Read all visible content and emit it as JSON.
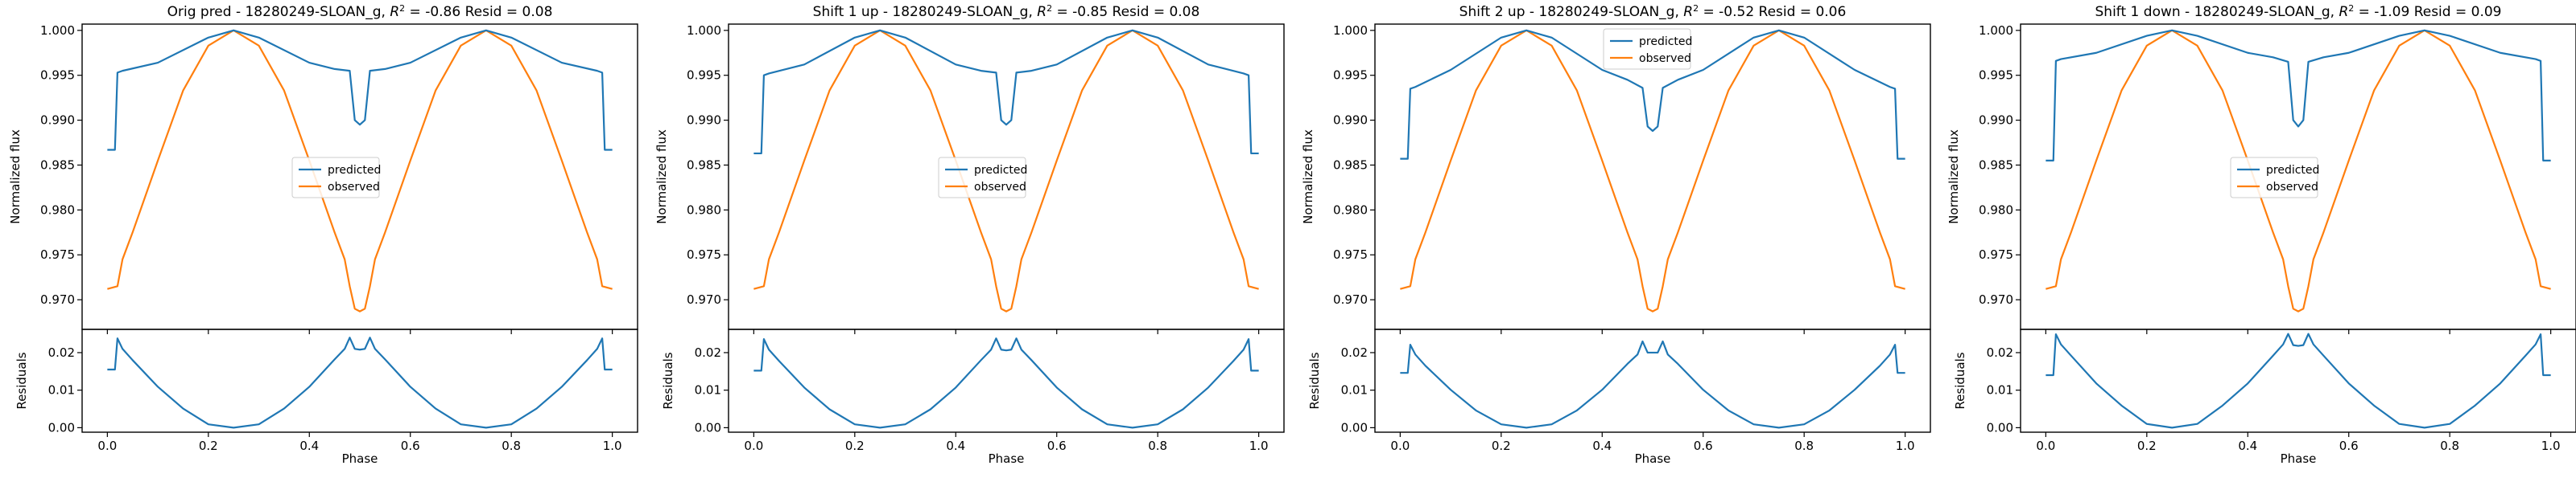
{
  "figure": {
    "panels": [
      {
        "title": "Orig pred - 18280249-SLOAN_g, ",
        "r2_text": "R",
        "r2_sup": "2",
        "r2_value": " = -0.86 Resid = 0.08"
      },
      {
        "title": "Shift 1 up - 18280249-SLOAN_g, ",
        "r2_text": "R",
        "r2_sup": "2",
        "r2_value": " = -0.85 Resid = 0.08"
      },
      {
        "title": "Shift 2 up - 18280249-SLOAN_g, ",
        "r2_text": "R",
        "r2_sup": "2",
        "r2_value": " = -0.52 Resid = 0.06"
      },
      {
        "title": "Shift 1 down - 18280249-SLOAN_g, ",
        "r2_text": "R",
        "r2_sup": "2",
        "r2_value": " = -1.09 Resid = 0.09"
      }
    ]
  },
  "chart_data": [
    {
      "type": "line",
      "title": "Orig pred - 18280249-SLOAN_g, R^2 = -0.86 Resid = 0.08",
      "xlabel": "Phase",
      "ylabel_top": "Normalized flux",
      "ylabel_bottom": "Residuals",
      "xlim": [
        -0.05,
        1.05
      ],
      "ylim_top": [
        0.9667,
        1.0007
      ],
      "ylim_bottom": [
        -0.0012,
        0.0262
      ],
      "x_ticks": [
        "0.0",
        "0.2",
        "0.4",
        "0.6",
        "0.8",
        "1.0"
      ],
      "y_ticks_top": [
        "0.970",
        "0.975",
        "0.980",
        "0.985",
        "0.990",
        "0.995",
        "1.000"
      ],
      "y_ticks_bottom": [
        "0.00",
        "0.01",
        "0.02"
      ],
      "legend": {
        "position": "center",
        "entries": [
          "predicted",
          "observed"
        ]
      },
      "series": [
        {
          "name": "predicted",
          "color": "#1f77b4",
          "x": [
            0.0,
            0.015,
            0.02,
            0.03,
            0.1,
            0.2,
            0.25,
            0.3,
            0.4,
            0.45,
            0.48,
            0.49,
            0.5,
            0.51,
            0.52,
            0.55,
            0.6,
            0.7,
            0.75,
            0.8,
            0.9,
            0.97,
            0.98,
            0.985,
            1.0
          ],
          "y": [
            0.9867,
            0.9867,
            0.9953,
            0.9955,
            0.9964,
            0.9992,
            1.0,
            0.9992,
            0.9964,
            0.9957,
            0.9955,
            0.99,
            0.9895,
            0.99,
            0.9955,
            0.9957,
            0.9964,
            0.9992,
            1.0,
            0.9992,
            0.9964,
            0.9955,
            0.9953,
            0.9867,
            0.9867
          ]
        },
        {
          "name": "observed",
          "color": "#ff7f0e",
          "x": [
            0.0,
            0.02,
            0.03,
            0.05,
            0.1,
            0.15,
            0.2,
            0.25,
            0.3,
            0.35,
            0.4,
            0.45,
            0.47,
            0.48,
            0.49,
            0.5,
            0.51,
            0.52,
            0.53,
            0.55,
            0.6,
            0.65,
            0.7,
            0.75,
            0.8,
            0.85,
            0.9,
            0.95,
            0.97,
            0.98,
            1.0
          ],
          "y": [
            0.9712,
            0.9715,
            0.9745,
            0.9775,
            0.9855,
            0.9933,
            0.9983,
            1.0,
            0.9983,
            0.9933,
            0.9855,
            0.9775,
            0.9745,
            0.9715,
            0.969,
            0.9687,
            0.969,
            0.9715,
            0.9745,
            0.9775,
            0.9855,
            0.9933,
            0.9983,
            1.0,
            0.9983,
            0.9933,
            0.9855,
            0.9775,
            0.9745,
            0.9715,
            0.9712
          ]
        },
        {
          "name": "residuals",
          "color": "#1f77b4",
          "x": [
            0.0,
            0.015,
            0.02,
            0.03,
            0.05,
            0.1,
            0.15,
            0.2,
            0.25,
            0.3,
            0.35,
            0.4,
            0.45,
            0.47,
            0.48,
            0.49,
            0.5,
            0.51,
            0.52,
            0.53,
            0.55,
            0.6,
            0.65,
            0.7,
            0.75,
            0.8,
            0.85,
            0.9,
            0.95,
            0.97,
            0.98,
            0.985,
            1.0
          ],
          "y": [
            0.0155,
            0.0155,
            0.0238,
            0.021,
            0.018,
            0.0109,
            0.0051,
            0.0009,
            0.0,
            0.0009,
            0.0051,
            0.0109,
            0.0182,
            0.021,
            0.024,
            0.021,
            0.0208,
            0.021,
            0.024,
            0.021,
            0.0182,
            0.0109,
            0.0051,
            0.0009,
            0.0,
            0.0009,
            0.0051,
            0.0109,
            0.018,
            0.021,
            0.0238,
            0.0155,
            0.0155
          ]
        }
      ]
    },
    {
      "type": "line",
      "title": "Shift 1 up - 18280249-SLOAN_g, R^2 = -0.85 Resid = 0.08",
      "xlabel": "Phase",
      "ylabel_top": "Normalized flux",
      "ylabel_bottom": "Residuals",
      "xlim": [
        -0.05,
        1.05
      ],
      "ylim_top": [
        0.9667,
        1.0007
      ],
      "ylim_bottom": [
        -0.0012,
        0.0262
      ],
      "x_ticks": [
        "0.0",
        "0.2",
        "0.4",
        "0.6",
        "0.8",
        "1.0"
      ],
      "y_ticks_top": [
        "0.970",
        "0.975",
        "0.980",
        "0.985",
        "0.990",
        "0.995",
        "1.000"
      ],
      "y_ticks_bottom": [
        "0.00",
        "0.01",
        "0.02"
      ],
      "legend": {
        "position": "center",
        "entries": [
          "predicted",
          "observed"
        ]
      },
      "series": [
        {
          "name": "predicted",
          "color": "#1f77b4",
          "x": [
            0.0,
            0.015,
            0.02,
            0.03,
            0.1,
            0.2,
            0.25,
            0.3,
            0.4,
            0.45,
            0.48,
            0.49,
            0.5,
            0.51,
            0.52,
            0.55,
            0.6,
            0.7,
            0.75,
            0.8,
            0.9,
            0.97,
            0.98,
            0.985,
            1.0
          ],
          "y": [
            0.9863,
            0.9863,
            0.995,
            0.9952,
            0.9962,
            0.9992,
            1.0,
            0.9992,
            0.9962,
            0.9955,
            0.9953,
            0.99,
            0.9895,
            0.99,
            0.9953,
            0.9955,
            0.9962,
            0.9992,
            1.0,
            0.9992,
            0.9962,
            0.9952,
            0.995,
            0.9863,
            0.9863
          ]
        },
        {
          "name": "observed",
          "color": "#ff7f0e",
          "x": [
            0.0,
            0.02,
            0.03,
            0.05,
            0.1,
            0.15,
            0.2,
            0.25,
            0.3,
            0.35,
            0.4,
            0.45,
            0.47,
            0.48,
            0.49,
            0.5,
            0.51,
            0.52,
            0.53,
            0.55,
            0.6,
            0.65,
            0.7,
            0.75,
            0.8,
            0.85,
            0.9,
            0.95,
            0.97,
            0.98,
            1.0
          ],
          "y": [
            0.9712,
            0.9715,
            0.9745,
            0.9775,
            0.9855,
            0.9933,
            0.9983,
            1.0,
            0.9983,
            0.9933,
            0.9855,
            0.9775,
            0.9745,
            0.9715,
            0.969,
            0.9687,
            0.969,
            0.9715,
            0.9745,
            0.9775,
            0.9855,
            0.9933,
            0.9983,
            1.0,
            0.9983,
            0.9933,
            0.9855,
            0.9775,
            0.9745,
            0.9715,
            0.9712
          ]
        },
        {
          "name": "residuals",
          "color": "#1f77b4",
          "x": [
            0.0,
            0.015,
            0.02,
            0.03,
            0.05,
            0.1,
            0.15,
            0.2,
            0.25,
            0.3,
            0.35,
            0.4,
            0.45,
            0.47,
            0.48,
            0.49,
            0.5,
            0.51,
            0.52,
            0.53,
            0.55,
            0.6,
            0.65,
            0.7,
            0.75,
            0.8,
            0.85,
            0.9,
            0.95,
            0.97,
            0.98,
            0.985,
            1.0
          ],
          "y": [
            0.0152,
            0.0152,
            0.0236,
            0.0208,
            0.0178,
            0.0107,
            0.0049,
            0.0009,
            0.0,
            0.0009,
            0.0049,
            0.0107,
            0.018,
            0.0208,
            0.0238,
            0.0208,
            0.0206,
            0.0208,
            0.0238,
            0.0208,
            0.018,
            0.0107,
            0.0049,
            0.0009,
            0.0,
            0.0009,
            0.0049,
            0.0107,
            0.0178,
            0.0208,
            0.0236,
            0.0152,
            0.0152
          ]
        }
      ]
    },
    {
      "type": "line",
      "title": "Shift 2 up - 18280249-SLOAN_g, R^2 = -0.52 Resid = 0.06",
      "xlabel": "Phase",
      "ylabel_top": "Normalized flux",
      "ylabel_bottom": "Residuals",
      "xlim": [
        -0.05,
        1.05
      ],
      "ylim_top": [
        0.9667,
        1.0007
      ],
      "ylim_bottom": [
        -0.0012,
        0.0262
      ],
      "x_ticks": [
        "0.0",
        "0.2",
        "0.4",
        "0.6",
        "0.8",
        "1.0"
      ],
      "y_ticks_top": [
        "0.970",
        "0.975",
        "0.980",
        "0.985",
        "0.990",
        "0.995",
        "1.000"
      ],
      "y_ticks_bottom": [
        "0.00",
        "0.01",
        "0.02"
      ],
      "legend": {
        "position": "upper center",
        "entries": [
          "predicted",
          "observed"
        ]
      },
      "series": [
        {
          "name": "predicted",
          "color": "#1f77b4",
          "x": [
            0.0,
            0.015,
            0.02,
            0.03,
            0.1,
            0.2,
            0.25,
            0.3,
            0.4,
            0.45,
            0.48,
            0.49,
            0.5,
            0.51,
            0.52,
            0.55,
            0.6,
            0.7,
            0.75,
            0.8,
            0.9,
            0.97,
            0.98,
            0.985,
            1.0
          ],
          "y": [
            0.9857,
            0.9857,
            0.9935,
            0.9937,
            0.9956,
            0.9992,
            1.0,
            0.9992,
            0.9956,
            0.9945,
            0.9936,
            0.9893,
            0.9888,
            0.9893,
            0.9936,
            0.9945,
            0.9956,
            0.9992,
            1.0,
            0.9992,
            0.9956,
            0.9937,
            0.9935,
            0.9857,
            0.9857
          ]
        },
        {
          "name": "observed",
          "color": "#ff7f0e",
          "x": [
            0.0,
            0.02,
            0.03,
            0.05,
            0.1,
            0.15,
            0.2,
            0.25,
            0.3,
            0.35,
            0.4,
            0.45,
            0.47,
            0.48,
            0.49,
            0.5,
            0.51,
            0.52,
            0.53,
            0.55,
            0.6,
            0.65,
            0.7,
            0.75,
            0.8,
            0.85,
            0.9,
            0.95,
            0.97,
            0.98,
            1.0
          ],
          "y": [
            0.9712,
            0.9715,
            0.9745,
            0.9775,
            0.9855,
            0.9933,
            0.9983,
            1.0,
            0.9983,
            0.9933,
            0.9855,
            0.9775,
            0.9745,
            0.9715,
            0.969,
            0.9687,
            0.969,
            0.9715,
            0.9745,
            0.9775,
            0.9855,
            0.9933,
            0.9983,
            1.0,
            0.9983,
            0.9933,
            0.9855,
            0.9775,
            0.9745,
            0.9715,
            0.9712
          ]
        },
        {
          "name": "residuals",
          "color": "#1f77b4",
          "x": [
            0.0,
            0.015,
            0.02,
            0.03,
            0.05,
            0.1,
            0.15,
            0.2,
            0.25,
            0.3,
            0.35,
            0.4,
            0.45,
            0.47,
            0.48,
            0.49,
            0.5,
            0.51,
            0.52,
            0.53,
            0.55,
            0.6,
            0.65,
            0.7,
            0.75,
            0.8,
            0.85,
            0.9,
            0.95,
            0.97,
            0.98,
            0.985,
            1.0
          ],
          "y": [
            0.0146,
            0.0146,
            0.0221,
            0.0195,
            0.0165,
            0.0101,
            0.0046,
            0.0009,
            0.0,
            0.0009,
            0.0046,
            0.0101,
            0.017,
            0.0195,
            0.023,
            0.02,
            0.02,
            0.02,
            0.023,
            0.0195,
            0.017,
            0.0101,
            0.0046,
            0.0009,
            0.0,
            0.0009,
            0.0046,
            0.0101,
            0.0165,
            0.0195,
            0.0221,
            0.0146,
            0.0146
          ]
        }
      ]
    },
    {
      "type": "line",
      "title": "Shift 1 down - 18280249-SLOAN_g, R^2 = -1.09 Resid = 0.09",
      "xlabel": "Phase",
      "ylabel_top": "Normalized flux",
      "ylabel_bottom": "Residuals",
      "xlim": [
        -0.05,
        1.05
      ],
      "ylim_top": [
        0.9667,
        1.0007
      ],
      "ylim_bottom": [
        -0.0012,
        0.0262
      ],
      "x_ticks": [
        "0.0",
        "0.2",
        "0.4",
        "0.6",
        "0.8",
        "1.0"
      ],
      "y_ticks_top": [
        "0.970",
        "0.975",
        "0.980",
        "0.985",
        "0.990",
        "0.995",
        "1.000"
      ],
      "y_ticks_bottom": [
        "0.00",
        "0.01",
        "0.02"
      ],
      "legend": {
        "position": "center",
        "entries": [
          "predicted",
          "observed"
        ]
      },
      "series": [
        {
          "name": "predicted",
          "color": "#1f77b4",
          "x": [
            0.0,
            0.015,
            0.02,
            0.03,
            0.1,
            0.2,
            0.25,
            0.3,
            0.4,
            0.45,
            0.48,
            0.49,
            0.5,
            0.51,
            0.52,
            0.55,
            0.6,
            0.7,
            0.75,
            0.8,
            0.9,
            0.97,
            0.98,
            0.985,
            1.0
          ],
          "y": [
            0.9855,
            0.9855,
            0.9966,
            0.9968,
            0.9975,
            0.9994,
            1.0,
            0.9994,
            0.9975,
            0.997,
            0.9965,
            0.99,
            0.9893,
            0.99,
            0.9965,
            0.997,
            0.9975,
            0.9994,
            1.0,
            0.9994,
            0.9975,
            0.9968,
            0.9966,
            0.9855,
            0.9855
          ]
        },
        {
          "name": "observed",
          "color": "#ff7f0e",
          "x": [
            0.0,
            0.02,
            0.03,
            0.05,
            0.1,
            0.15,
            0.2,
            0.25,
            0.3,
            0.35,
            0.4,
            0.45,
            0.47,
            0.48,
            0.49,
            0.5,
            0.51,
            0.52,
            0.53,
            0.55,
            0.6,
            0.65,
            0.7,
            0.75,
            0.8,
            0.85,
            0.9,
            0.95,
            0.97,
            0.98,
            1.0
          ],
          "y": [
            0.9712,
            0.9715,
            0.9745,
            0.9775,
            0.9855,
            0.9933,
            0.9983,
            1.0,
            0.9983,
            0.9933,
            0.9855,
            0.9775,
            0.9745,
            0.9715,
            0.969,
            0.9687,
            0.969,
            0.9715,
            0.9745,
            0.9775,
            0.9855,
            0.9933,
            0.9983,
            1.0,
            0.9983,
            0.9933,
            0.9855,
            0.9775,
            0.9745,
            0.9715,
            0.9712
          ]
        },
        {
          "name": "residuals",
          "color": "#1f77b4",
          "x": [
            0.0,
            0.015,
            0.02,
            0.03,
            0.05,
            0.1,
            0.15,
            0.2,
            0.25,
            0.3,
            0.35,
            0.4,
            0.45,
            0.47,
            0.48,
            0.49,
            0.5,
            0.51,
            0.52,
            0.53,
            0.55,
            0.6,
            0.65,
            0.7,
            0.75,
            0.8,
            0.85,
            0.9,
            0.95,
            0.97,
            0.98,
            0.985,
            1.0
          ],
          "y": [
            0.014,
            0.014,
            0.0249,
            0.0222,
            0.0192,
            0.0118,
            0.0059,
            0.001,
            0.0,
            0.001,
            0.0059,
            0.0118,
            0.0192,
            0.0222,
            0.025,
            0.022,
            0.0218,
            0.022,
            0.025,
            0.0222,
            0.0192,
            0.0118,
            0.0059,
            0.001,
            0.0,
            0.001,
            0.0059,
            0.0118,
            0.0192,
            0.0222,
            0.0249,
            0.014,
            0.014
          ]
        }
      ]
    }
  ]
}
